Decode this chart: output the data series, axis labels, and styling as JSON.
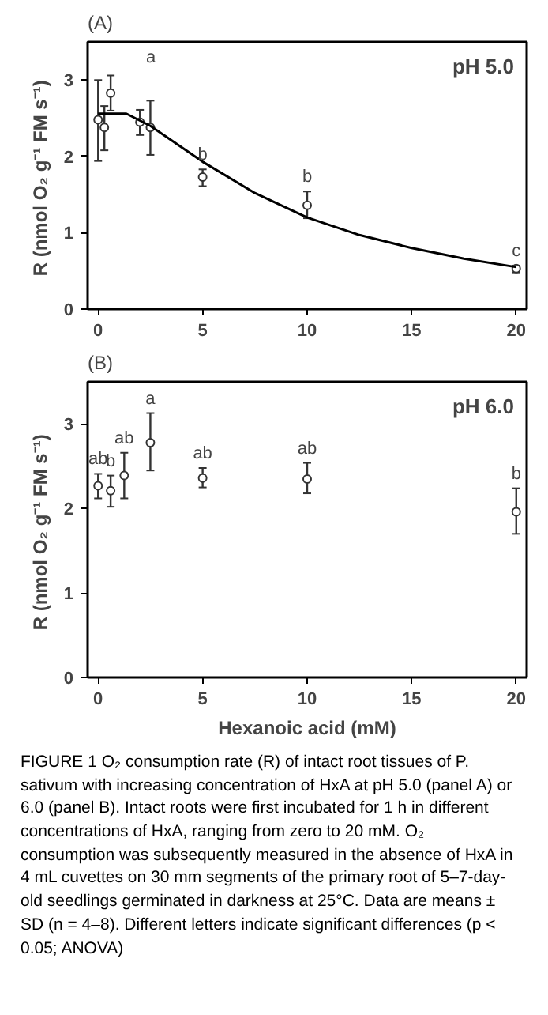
{
  "chart_data": [
    {
      "type": "scatter",
      "title": "(A)",
      "subtitle": "pH 5.0",
      "ylabel": "R (nmol O₂ g⁻¹  FM s⁻¹)",
      "xlim": [
        -0.5,
        20.5
      ],
      "xticks": [
        0,
        5,
        10,
        15,
        20
      ],
      "ylim": [
        0,
        3.5
      ],
      "yticks": [
        0,
        1,
        2,
        3
      ],
      "grid": false,
      "series": [
        {
          "color": "#333333",
          "marker": "circle",
          "x": [
            0,
            0.3,
            0.6,
            2,
            2.5,
            5,
            10,
            20
          ],
          "values": [
            2.48,
            2.38,
            2.83,
            2.45,
            2.38,
            1.73,
            1.36,
            0.53
          ],
          "errors": [
            [
              1.94,
              3.0
            ],
            [
              2.08,
              2.66
            ],
            [
              2.6,
              3.06
            ],
            [
              2.28,
              2.61
            ],
            [
              2.02,
              2.73
            ],
            [
              1.61,
              1.83
            ],
            [
              1.19,
              1.54
            ],
            [
              0.48,
              0.57
            ]
          ],
          "value_labels": [
            null,
            null,
            null,
            null,
            null,
            "b",
            "b",
            "c"
          ]
        },
        {
          "type": "line",
          "color": "#000000",
          "x": [
            0,
            1.35,
            2.5,
            5,
            7.5,
            10,
            12.5,
            15,
            17.5,
            20
          ],
          "values": [
            2.56,
            2.56,
            2.4,
            1.93,
            1.52,
            1.2,
            0.97,
            0.8,
            0.66,
            0.55
          ]
        }
      ],
      "annotations": [
        "a"
      ]
    },
    {
      "type": "scatter",
      "title": "(B)",
      "subtitle": "pH 6.0",
      "xlabel": "Hexanoic acid (mM)",
      "ylabel": "R (nmol O₂ g⁻¹  FM s⁻¹)",
      "xlim": [
        -0.5,
        20.5
      ],
      "xticks": [
        0,
        5,
        10,
        15,
        20
      ],
      "ylim": [
        0,
        3.5
      ],
      "yticks": [
        0,
        1,
        2,
        3
      ],
      "grid": false,
      "series": [
        {
          "color": "#333333",
          "marker": "circle",
          "x": [
            0,
            0.6,
            1.25,
            2.5,
            5,
            10,
            20
          ],
          "values": [
            2.27,
            2.21,
            2.39,
            2.78,
            2.36,
            2.35,
            1.96
          ],
          "errors": [
            [
              2.12,
              2.41
            ],
            [
              2.02,
              2.39
            ],
            [
              2.12,
              2.66
            ],
            [
              2.45,
              3.13
            ],
            [
              2.25,
              2.48
            ],
            [
              2.18,
              2.54
            ],
            [
              1.7,
              2.24
            ]
          ],
          "value_labels": [
            "ab",
            "b",
            "ab",
            "a",
            "ab",
            "ab",
            "b"
          ]
        }
      ],
      "annotations": [
        "FIGURE 1   O₂ consumption rate (R) of intact root tissues of P. sativum with increasing concentration of HxA at pH 5.0 (panel A) or 6.0 (panel B). Intact roots were first incubated for 1 h in different concentrations of HxA, ranging from zero to 20 mM. O₂ consumption was subsequently measured in the absence of HxA in 4 mL cuvettes on 30 mm segments of the primary root of 5–7-day-old seedlings germinated in darkness at 25°C. Data are means ± SD (n = 4–8). Different letters indicate significant differences (p < 0.05; ANOVA)"
      ]
    }
  ]
}
